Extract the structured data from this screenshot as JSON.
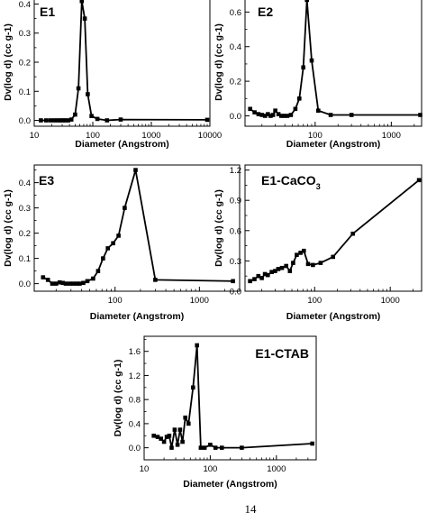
{
  "footer_text": "14",
  "chart_data": [
    {
      "id": "E1",
      "type": "line",
      "title": "E1",
      "title_sub": "",
      "xlabel": "Diameter (Angstrom)",
      "ylabel": "Dv(log d) (cc g-1)",
      "x_scale": "log",
      "xlim": [
        10,
        10000
      ],
      "ylim": [
        -0.02,
        0.42
      ],
      "xticks": [
        10,
        100,
        1000,
        10000
      ],
      "xtick_labels": [
        "10",
        "100",
        "1000",
        "10000"
      ],
      "yticks": [
        0.0,
        0.1,
        0.2,
        0.3,
        0.4
      ],
      "ytick_labels": [
        "0.0",
        "0.1",
        "0.2",
        "0.3",
        "0.4"
      ],
      "series": [
        {
          "x": [
            13,
            16,
            19,
            22,
            25,
            28,
            31,
            34,
            38,
            43,
            50,
            57,
            65,
            73,
            82,
            95,
            120,
            175,
            300,
            9000
          ],
          "y": [
            0.0,
            0.0,
            0.0,
            0.0,
            0.0,
            0.0,
            0.0,
            0.0,
            0.0,
            0.003,
            0.02,
            0.11,
            0.41,
            0.35,
            0.09,
            0.015,
            0.005,
            0.0,
            0.003,
            0.002
          ]
        }
      ]
    },
    {
      "id": "E2",
      "type": "line",
      "title": "E2",
      "title_sub": "",
      "xlabel": "Diameter (Angstrom)",
      "ylabel": "Dv(log d) (cc g-1)",
      "x_scale": "log",
      "xlim": [
        12,
        2500
      ],
      "ylim": [
        -0.06,
        0.68
      ],
      "xticks": [
        100,
        1000
      ],
      "xtick_labels": [
        "100",
        "1000"
      ],
      "yticks": [
        0.0,
        0.2,
        0.4,
        0.6
      ],
      "ytick_labels": [
        "0.0",
        "0.2",
        "0.4",
        "0.6"
      ],
      "series": [
        {
          "x": [
            14,
            16,
            18,
            20,
            22,
            24,
            26,
            28,
            30,
            33,
            36,
            39,
            43,
            48,
            55,
            62,
            70,
            78,
            90,
            110,
            160,
            300,
            2400
          ],
          "y": [
            0.04,
            0.02,
            0.01,
            0.005,
            0.0,
            0.01,
            0.0,
            0.005,
            0.03,
            0.01,
            0.0,
            0.0,
            0.0,
            0.005,
            0.04,
            0.1,
            0.28,
            0.67,
            0.32,
            0.03,
            0.005,
            0.005,
            0.005
          ]
        }
      ]
    },
    {
      "id": "E3",
      "type": "line",
      "title": "E3",
      "title_sub": "",
      "xlabel": "Diameter (Angstrom)",
      "ylabel": "Dv(log d) (cc g-1)",
      "x_scale": "log",
      "xlim": [
        11,
        3000
      ],
      "ylim": [
        -0.03,
        0.47
      ],
      "xticks": [
        100,
        1000
      ],
      "xtick_labels": [
        "100",
        "1000"
      ],
      "yticks": [
        0.0,
        0.1,
        0.2,
        0.3,
        0.4
      ],
      "ytick_labels": [
        "0.0",
        "0.1",
        "0.2",
        "0.3",
        "0.4"
      ],
      "series": [
        {
          "x": [
            14,
            16,
            18,
            20,
            22,
            24,
            26,
            29,
            32,
            35,
            38,
            42,
            47,
            55,
            63,
            72,
            82,
            95,
            110,
            130,
            175,
            300,
            2500
          ],
          "y": [
            0.025,
            0.015,
            0.0,
            0.0,
            0.005,
            0.003,
            0.0,
            0.0,
            0.0,
            0.0,
            0.0,
            0.003,
            0.01,
            0.02,
            0.05,
            0.1,
            0.14,
            0.16,
            0.19,
            0.3,
            0.45,
            0.015,
            0.01
          ]
        }
      ]
    },
    {
      "id": "E1-CaCO3",
      "type": "line",
      "title": "E1-CaCO",
      "title_sub": "3",
      "xlabel": "Diameter (Angstrom)",
      "ylabel": "Dv(log d) (cc g-1)",
      "x_scale": "log",
      "xlim": [
        12,
        2600
      ],
      "ylim": [
        0.0,
        1.25
      ],
      "xticks": [
        100,
        1000
      ],
      "xtick_labels": [
        "100",
        "1000"
      ],
      "yticks": [
        0.0,
        0.3,
        0.6,
        0.9,
        1.2
      ],
      "ytick_labels": [
        "0.0",
        "0.3",
        "0.6",
        "0.9",
        "1.2"
      ],
      "series": [
        {
          "x": [
            14,
            16,
            18,
            20,
            22,
            24,
            27,
            30,
            33,
            37,
            42,
            47,
            52,
            58,
            65,
            72,
            82,
            95,
            120,
            175,
            320,
            2400
          ],
          "y": [
            0.1,
            0.12,
            0.15,
            0.13,
            0.17,
            0.16,
            0.19,
            0.2,
            0.22,
            0.23,
            0.25,
            0.2,
            0.28,
            0.36,
            0.38,
            0.4,
            0.27,
            0.26,
            0.28,
            0.34,
            0.57,
            1.1
          ]
        }
      ]
    },
    {
      "id": "E1-CTAB",
      "type": "line",
      "title": "E1-CTAB",
      "title_sub": "",
      "xlabel": "Diameter (Angstrom)",
      "ylabel": "Dv(log d) (cc g-1)",
      "x_scale": "log",
      "xlim": [
        10,
        4000
      ],
      "ylim": [
        -0.2,
        1.85
      ],
      "xticks": [
        10,
        100,
        1000
      ],
      "xtick_labels": [
        "10",
        "100",
        "1000"
      ],
      "yticks": [
        0.0,
        0.4,
        0.8,
        1.2,
        1.6
      ],
      "ytick_labels": [
        "0.0",
        "0.4",
        "0.8",
        "1.2",
        "1.6"
      ],
      "series": [
        {
          "x": [
            14,
            16,
            18,
            20,
            22,
            24,
            26,
            29,
            32,
            35,
            38,
            42,
            47,
            55,
            63,
            72,
            82,
            100,
            120,
            150,
            300,
            3500
          ],
          "y": [
            0.2,
            0.18,
            0.15,
            0.1,
            0.18,
            0.2,
            0.0,
            0.3,
            0.05,
            0.3,
            0.1,
            0.5,
            0.4,
            1.0,
            1.7,
            0.0,
            0.0,
            0.05,
            0.0,
            0.0,
            0.0,
            0.07
          ]
        }
      ]
    }
  ]
}
